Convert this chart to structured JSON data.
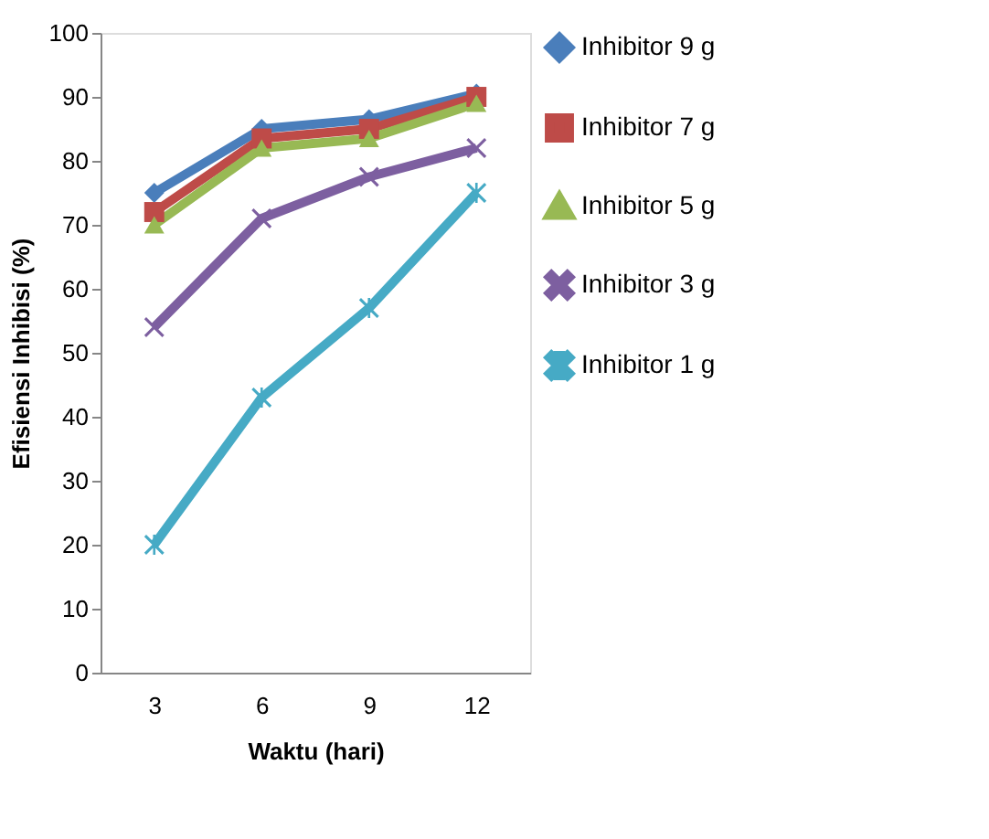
{
  "chart_data": {
    "type": "line",
    "xlabel": "Waktu (hari)",
    "ylabel": "Efisiensi Inhibisi (%)",
    "categories": [
      "3",
      "6",
      "9",
      "12"
    ],
    "series": [
      {
        "name": "Inhibitor 9 g",
        "color": "#4a7ebb",
        "marker": "diamond",
        "values": [
          75,
          85,
          86.5,
          90.5
        ]
      },
      {
        "name": "Inhibitor 7 g",
        "color": "#be4b48",
        "marker": "square",
        "values": [
          72,
          83.5,
          85,
          90
        ]
      },
      {
        "name": "Inhibitor 5 g",
        "color": "#98b954",
        "marker": "triangle",
        "values": [
          70,
          82,
          83.5,
          89
        ]
      },
      {
        "name": "Inhibitor 3 g",
        "color": "#7d5fa0",
        "marker": "cross",
        "values": [
          54,
          71,
          77.5,
          82
        ]
      },
      {
        "name": "Inhibitor 1 g",
        "color": "#46aac5",
        "marker": "star",
        "values": [
          20,
          43,
          57,
          75
        ]
      }
    ],
    "ylim": [
      0,
      100
    ],
    "yticks": [
      0,
      10,
      20,
      30,
      40,
      50,
      60,
      70,
      80,
      90,
      100
    ],
    "grid": false,
    "legend": "right",
    "line_style": "solid"
  }
}
